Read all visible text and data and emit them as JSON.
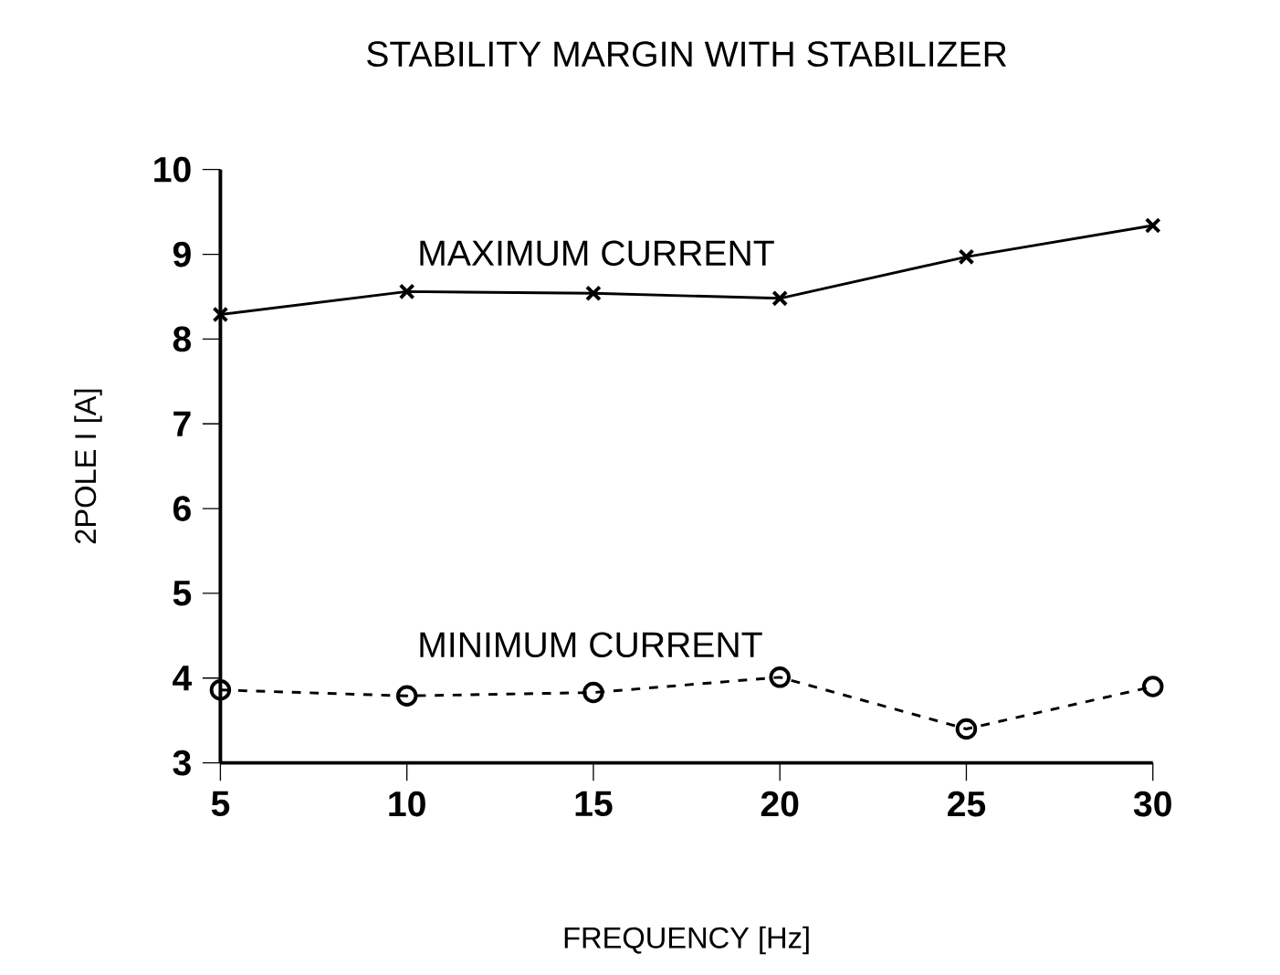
{
  "chart_data": {
    "type": "line",
    "title": "STABILITY MARGIN WITH STABILIZER",
    "xlabel": "FREQUENCY [Hz]",
    "ylabel": "2POLE I [A]",
    "x": [
      5,
      10,
      15,
      20,
      25,
      30
    ],
    "series": [
      {
        "name": "MAXIMUM CURRENT",
        "color": "#000000",
        "values": [
          8.29,
          8.56,
          8.54,
          8.48,
          8.97,
          9.34
        ],
        "marker": "cross",
        "line_style": "solid"
      },
      {
        "name": "MINIMUM CURRENT",
        "color": "#000000",
        "values": [
          3.86,
          3.79,
          3.83,
          4.01,
          3.4,
          3.9
        ],
        "marker": "circle",
        "line_style": "dashed"
      }
    ],
    "xlim": [
      5,
      30
    ],
    "ylim": [
      3,
      10
    ],
    "xticks": [
      5,
      10,
      15,
      20,
      25,
      30
    ],
    "yticks": [
      3,
      4,
      5,
      6,
      7,
      8,
      9,
      10
    ],
    "grid": false
  }
}
